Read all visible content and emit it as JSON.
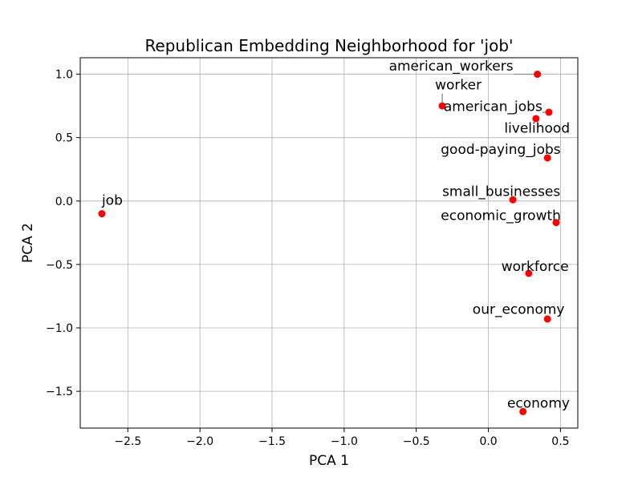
{
  "chart_data": {
    "type": "scatter",
    "title": "Republican Embedding Neighborhood for 'job'",
    "xlabel": "PCA 1",
    "ylabel": "PCA 2",
    "xlim": [
      -2.83,
      0.62
    ],
    "ylim": [
      -1.79,
      1.13
    ],
    "xticks": [
      -2.5,
      -2.0,
      -1.5,
      -1.0,
      -0.5,
      0.0,
      0.5
    ],
    "xtick_labels": [
      "−2.5",
      "−2.0",
      "−1.5",
      "−1.0",
      "−0.5",
      "0.0",
      "0.5"
    ],
    "yticks": [
      -1.5,
      -1.0,
      -0.5,
      0.0,
      0.5,
      1.0
    ],
    "ytick_labels": [
      "−1.5",
      "−1.0",
      "−0.5",
      "0.0",
      "0.5",
      "1.0"
    ],
    "grid": true,
    "marker_color": "#ff0000",
    "leader_color": "#808080",
    "points": [
      {
        "label": "job",
        "x": -2.68,
        "y": -0.1,
        "lx": -2.68,
        "ly": -0.03,
        "anchor": "start"
      },
      {
        "label": "american_workers",
        "x": 0.34,
        "y": 1.0,
        "lx": -0.69,
        "ly": 1.03,
        "anchor": "start"
      },
      {
        "label": "worker",
        "x": -0.32,
        "y": 0.75,
        "lx": -0.37,
        "ly": 0.88,
        "anchor": "start"
      },
      {
        "label": "american_jobs",
        "x": 0.42,
        "y": 0.7,
        "lx": -0.31,
        "ly": 0.71,
        "anchor": "start"
      },
      {
        "label": "livelihood",
        "x": 0.33,
        "y": 0.65,
        "lx": 0.11,
        "ly": 0.54,
        "anchor": "start"
      },
      {
        "label": "good-paying_jobs",
        "x": 0.41,
        "y": 0.34,
        "lx": -0.33,
        "ly": 0.37,
        "anchor": "start"
      },
      {
        "label": "small_businesses",
        "x": 0.17,
        "y": 0.01,
        "lx": -0.32,
        "ly": 0.04,
        "anchor": "start"
      },
      {
        "label": "economic_growth",
        "x": 0.47,
        "y": -0.17,
        "lx": -0.33,
        "ly": -0.15,
        "anchor": "start"
      },
      {
        "label": "workforce",
        "x": 0.28,
        "y": -0.57,
        "lx": 0.09,
        "ly": -0.55,
        "anchor": "start"
      },
      {
        "label": "our_economy",
        "x": 0.41,
        "y": -0.93,
        "lx": -0.11,
        "ly": -0.89,
        "anchor": "start"
      },
      {
        "label": "economy",
        "x": 0.24,
        "y": -1.66,
        "lx": 0.13,
        "ly": -1.63,
        "anchor": "start"
      }
    ]
  }
}
